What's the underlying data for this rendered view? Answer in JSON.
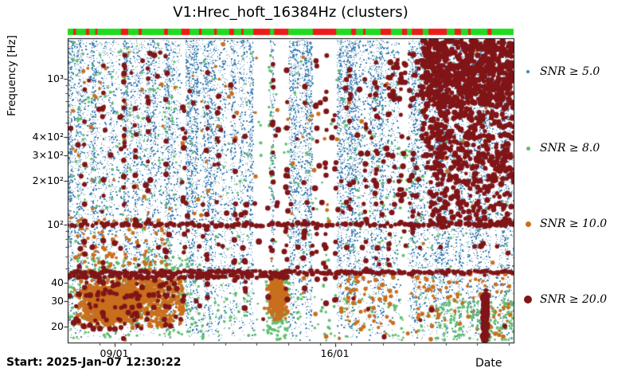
{
  "chart_data": {
    "type": "scatter",
    "title": "V1:Hrec_hoft_16384Hz (clusters)",
    "xlabel": "Date",
    "ylabel": "Frequency [Hz]",
    "seed": 20250107,
    "x_axis": {
      "start_label": "Start: 2025-Jan-07 12:30:22",
      "span_days": 14.15,
      "ticks": [
        {
          "day": 1.479,
          "label": "09/01"
        },
        {
          "day": 8.479,
          "label": "16/01"
        }
      ]
    },
    "y_axis": {
      "scale": "log",
      "min_hz": 15.5,
      "max_hz": 1900,
      "ticks": [
        {
          "hz": 20,
          "label": "20"
        },
        {
          "hz": 30,
          "label": "30"
        },
        {
          "hz": 40,
          "label": "40"
        },
        {
          "hz": 100,
          "label": "10²"
        },
        {
          "hz": 200,
          "label": "2×10²"
        },
        {
          "hz": 300,
          "label": "3×10²"
        },
        {
          "hz": 400,
          "label": "4×10²"
        },
        {
          "hz": 1000,
          "label": "10³"
        }
      ]
    },
    "legend": [
      {
        "label": "SNR ≥ 5.0",
        "color": "#4383b3",
        "marker_px": 4
      },
      {
        "label": "SNR ≥ 8.0",
        "color": "#5fbe6e",
        "marker_px": 5
      },
      {
        "label": "SNR ≥ 10.0",
        "color": "#c86f1e",
        "marker_px": 7
      },
      {
        "label": "SNR ≥ 20.0",
        "color": "#801517",
        "marker_px": 10
      }
    ],
    "segments_bar": {
      "on_color": "#1edc1e",
      "off_color": "#ed1c1c",
      "off_segments": [
        [
          0.18,
          0.26
        ],
        [
          0.58,
          0.68
        ],
        [
          0.88,
          0.94
        ],
        [
          1.69,
          1.92
        ],
        [
          2.25,
          2.35
        ],
        [
          3.06,
          3.18
        ],
        [
          3.61,
          3.87
        ],
        [
          4.17,
          4.25
        ],
        [
          4.65,
          4.73
        ],
        [
          5.13,
          5.28
        ],
        [
          5.51,
          5.58
        ],
        [
          5.89,
          6.42
        ],
        [
          6.55,
          7.0
        ],
        [
          7.78,
          8.52
        ],
        [
          9.0,
          9.15
        ],
        [
          9.38,
          9.45
        ],
        [
          9.93,
          10.26
        ],
        [
          10.61,
          10.77
        ],
        [
          10.92,
          11.27
        ],
        [
          11.45,
          12.03
        ],
        [
          12.28,
          12.48
        ],
        [
          12.71,
          12.79
        ],
        [
          13.32,
          13.45
        ]
      ]
    },
    "gaps": [
      [
        3.61,
        3.74
      ],
      [
        5.89,
        6.42
      ],
      [
        6.55,
        7.02
      ],
      [
        7.76,
        8.54
      ],
      [
        10.55,
        10.8
      ]
    ],
    "series": {
      "snr5_background": {
        "color": "#4383b3",
        "count": 42000,
        "stripe_count": 96,
        "freq_range": [
          16,
          1850
        ],
        "high_freq_bias": 0.72
      },
      "snr8": {
        "color": "#5fbe6e",
        "radius": 1.7,
        "regions": [
          {
            "day": [
              0,
              14.15
            ],
            "freq": [
              16,
              1800
            ],
            "count": 300,
            "logu": true
          },
          {
            "day": [
              0,
              14.15
            ],
            "freq": [
              16,
              34
            ],
            "count": 240
          },
          {
            "day": [
              0.05,
              3.8
            ],
            "freq": [
              17,
              60
            ],
            "count": 200
          },
          {
            "day": [
              6.3,
              7.05
            ],
            "freq": [
              15.6,
              42
            ],
            "count": 110
          },
          {
            "day": [
              11.6,
              14.15
            ],
            "freq": [
              16,
              30
            ],
            "count": 140
          },
          {
            "day": [
              0.1,
              3.5
            ],
            "freq": [
              120,
              1700
            ],
            "count": 70,
            "logu": true
          },
          {
            "day": [
              8.8,
              11.3
            ],
            "freq": [
              60,
              420
            ],
            "count": 50,
            "logu": true
          },
          {
            "day": [
              6.38,
              6.52
            ],
            "freq": [
              150,
              1600
            ],
            "count": 22,
            "logu": true
          }
        ]
      },
      "snr10": {
        "color": "#c86f1e",
        "radius": 2.3,
        "regions": [
          {
            "day": [
              0.1,
              2.6
            ],
            "freq": [
              20,
              38
            ],
            "count": 1300,
            "gauss": true
          },
          {
            "day": [
              0.05,
              3.75
            ],
            "freq": [
              19,
              46
            ],
            "count": 500,
            "gauss": true
          },
          {
            "day": [
              2.5,
              3.75
            ],
            "freq": [
              20,
              42
            ],
            "count": 180
          },
          {
            "day": [
              6.3,
              7.05
            ],
            "freq": [
              21,
              44
            ],
            "count": 420,
            "gauss": true
          },
          {
            "day": [
              0,
              14.15
            ],
            "freq": [
              16,
              1800
            ],
            "count": 130,
            "logu": true
          },
          {
            "day": [
              0.3,
              3.2
            ],
            "freq": [
              46,
              110
            ],
            "count": 80,
            "logu": true
          },
          {
            "day": [
              8.6,
              10.45
            ],
            "freq": [
              19,
              46
            ],
            "count": 60
          },
          {
            "day": [
              10.9,
              14.05
            ],
            "freq": [
              17,
              46
            ],
            "count": 70
          }
        ]
      },
      "snr20": {
        "color": "#801517",
        "radius": 3.1,
        "bands": [
          {
            "freq": 47,
            "day": [
              0,
              14.15
            ],
            "step": 0.1
          },
          {
            "freq": 44,
            "day": [
              0,
              7.0
            ],
            "step": 0.12
          },
          {
            "freq": 100,
            "day": [
              0,
              14.15
            ],
            "step": 0.13
          },
          {
            "freq": 33,
            "day": [
              0.1,
              3.7
            ],
            "step": 0.22
          },
          {
            "freq": 22,
            "day": [
              0.3,
              3.0
            ],
            "step": 0.45
          },
          {
            "freq": 70,
            "day": [
              0.2,
              13.9
            ],
            "step": 0.7
          },
          {
            "freq": 140,
            "day": [
              3.8,
              14.0
            ],
            "step": 0.55
          },
          {
            "freq": 120,
            "day": [
              8.8,
              14.0
            ],
            "step": 0.5
          },
          {
            "freq": 200,
            "day": [
              8.8,
              14.05
            ],
            "step": 0.35
          },
          {
            "freq": 250,
            "day": [
              10.4,
              14.1
            ],
            "step": 0.3
          },
          {
            "freq": 300,
            "day": [
              9.2,
              14.1
            ],
            "step": 0.3
          },
          {
            "freq": 400,
            "day": [
              10.8,
              14.1
            ],
            "step": 0.35
          },
          {
            "freq": 160,
            "day": [
              10.4,
              14.05
            ],
            "step": 0.4
          },
          {
            "freq": 550,
            "day": [
              11.3,
              14.1
            ],
            "step": 0.4
          }
        ],
        "columns": [
          {
            "day": 0.55,
            "freq": [
              18,
              900
            ],
            "count": 10
          },
          {
            "day": 1.12,
            "freq": [
              20,
              1400
            ],
            "count": 14
          },
          {
            "day": 1.8,
            "freq": [
              20,
              1500
            ],
            "count": 16
          },
          {
            "day": 2.15,
            "freq": [
              25,
              600
            ],
            "count": 8
          },
          {
            "day": 2.55,
            "freq": [
              60,
              1600
            ],
            "count": 12
          },
          {
            "day": 3.1,
            "freq": [
              20,
              1500
            ],
            "count": 14
          },
          {
            "day": 3.68,
            "freq": [
              25,
              1200
            ],
            "count": 10
          },
          {
            "day": 4.42,
            "freq": [
              30,
              1500
            ],
            "count": 12
          },
          {
            "day": 4.78,
            "freq": [
              25,
              800
            ],
            "count": 8
          },
          {
            "day": 5.3,
            "freq": [
              40,
              1600
            ],
            "count": 12
          },
          {
            "day": 5.62,
            "freq": [
              25,
              500
            ],
            "count": 7
          },
          {
            "day": 6.5,
            "freq": [
              30,
              1500
            ],
            "count": 10
          },
          {
            "day": 6.95,
            "freq": [
              25,
              1200
            ],
            "count": 12
          },
          {
            "day": 7.5,
            "freq": [
              30,
              900
            ],
            "count": 9
          },
          {
            "day": 7.9,
            "freq": [
              25,
              1500
            ],
            "count": 12
          },
          {
            "day": 8.2,
            "freq": [
              25,
              1500
            ],
            "count": 14
          },
          {
            "day": 8.5,
            "freq": [
              30,
              1000
            ],
            "count": 10
          },
          {
            "day": 8.95,
            "freq": [
              40,
              1500
            ],
            "count": 10
          },
          {
            "day": 9.45,
            "freq": [
              30,
              1200
            ],
            "count": 10
          },
          {
            "day": 9.8,
            "freq": [
              50,
              1500
            ],
            "count": 10
          },
          {
            "day": 10.2,
            "freq": [
              40,
              1000
            ],
            "count": 8
          },
          {
            "day": 10.6,
            "freq": [
              100,
              1600
            ],
            "count": 10
          },
          {
            "day": 10.95,
            "freq": [
              60,
              1500
            ],
            "count": 10
          }
        ],
        "regions": [
          {
            "day": [
              11.25,
              14.15
            ],
            "freq": [
              650,
              1850
            ],
            "count": 700,
            "logu": true
          },
          {
            "day": [
              11.25,
              14.15
            ],
            "freq": [
              240,
              650
            ],
            "count": 260,
            "logu": true
          },
          {
            "day": [
              11.5,
              14.15
            ],
            "freq": [
              95,
              240
            ],
            "count": 150,
            "logu": true
          },
          {
            "day": [
              13.17,
              13.32
            ],
            "freq": [
              15.8,
              33
            ],
            "count": 170
          },
          {
            "day": [
              0,
              14.15
            ],
            "freq": [
              16,
              1800
            ],
            "count": 130,
            "logu": true
          },
          {
            "day": [
              0.1,
              3.6
            ],
            "freq": [
              19,
              42
            ],
            "count": 60
          },
          {
            "day": [
              10.0,
              11.25
            ],
            "freq": [
              700,
              1500
            ],
            "count": 40,
            "logu": true
          }
        ]
      }
    }
  }
}
